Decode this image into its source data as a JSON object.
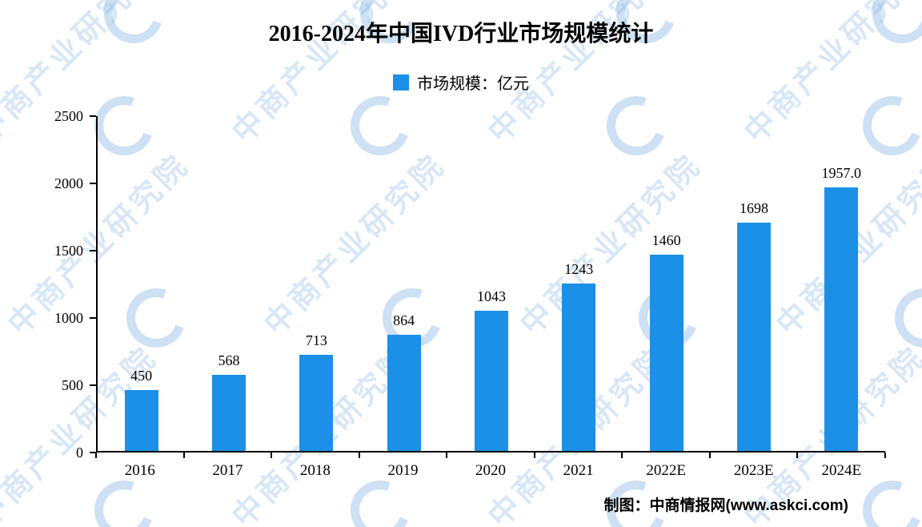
{
  "chart_data": {
    "type": "bar",
    "title": "2016-2024年中国IVD行业市场规模统计",
    "legend_label": "市场规模：亿元",
    "legend_position": "top-center",
    "categories": [
      "2016",
      "2017",
      "2018",
      "2019",
      "2020",
      "2021",
      "2022E",
      "2023E",
      "2024E"
    ],
    "values": [
      450,
      568,
      713,
      864,
      1043,
      1243,
      1460,
      1698,
      1957
    ],
    "value_labels": [
      "450",
      "568",
      "713",
      "864",
      "1043",
      "1243",
      "1460",
      "1698",
      "1957.0"
    ],
    "xlabel": "",
    "ylabel": "",
    "ylim": [
      0,
      2500
    ],
    "yticks": [
      0,
      500,
      1000,
      1500,
      2000,
      2500
    ],
    "grid": false,
    "bar_color": "#1C8FE6"
  },
  "watermark": {
    "text": "中商产业研究院"
  },
  "footer": {
    "credit": "制图：中商情报网(www.askci.com)"
  }
}
